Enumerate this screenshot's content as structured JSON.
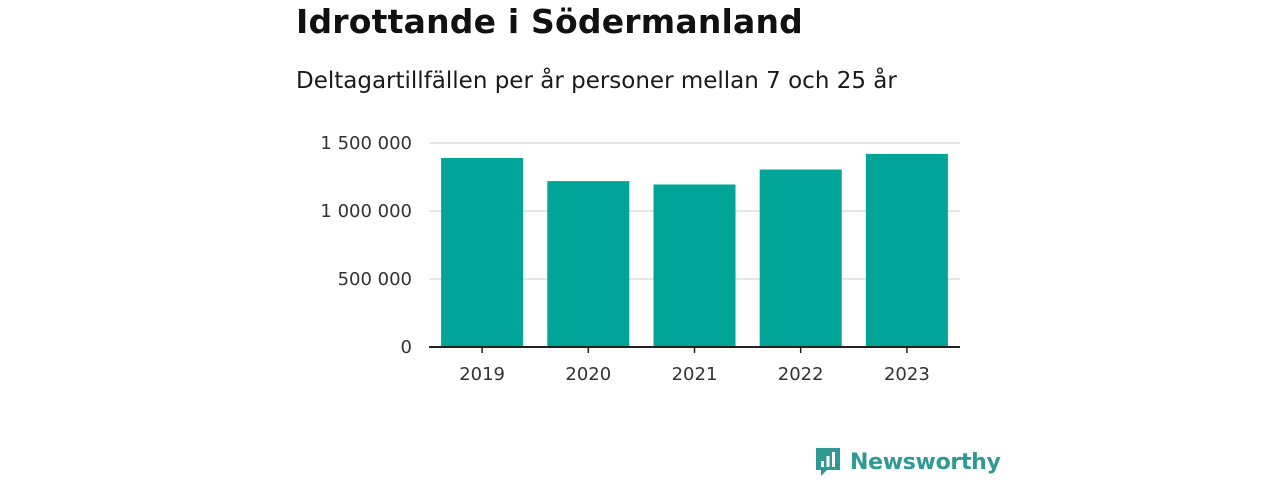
{
  "chart_data": {
    "type": "bar",
    "title": "Idrottande i Södermanland",
    "subtitle": "Deltagartillfällen per år personer mellan 7 och 25 år",
    "categories": [
      "2019",
      "2020",
      "2021",
      "2022",
      "2023"
    ],
    "values": [
      1390000,
      1220000,
      1195000,
      1305000,
      1420000
    ],
    "ylim": [
      0,
      1500000
    ],
    "yticks": [
      0,
      500000,
      1000000,
      1500000
    ],
    "ytick_labels": [
      "0",
      "500 000",
      "1 000 000",
      "1 500 000"
    ],
    "xlabel": "",
    "ylabel": "",
    "grid": true,
    "bar_color": "#00a598",
    "grid_color": "#dddddd",
    "axis_color": "#222222"
  },
  "branding": {
    "name": "Newsworthy",
    "icon": "newsworthy-logo-icon",
    "color": "#2f9a93"
  }
}
